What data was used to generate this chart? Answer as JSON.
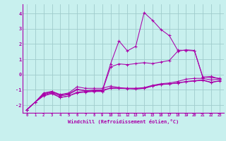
{
  "xlabel": "Windchill (Refroidissement éolien,°C)",
  "ylabel": "",
  "background_color": "#c8f0ee",
  "grid_color": "#a0cccc",
  "line_color": "#aa00aa",
  "xlim": [
    -0.5,
    23.5
  ],
  "ylim": [
    -2.5,
    4.6
  ],
  "xticks": [
    0,
    1,
    2,
    3,
    4,
    5,
    6,
    7,
    8,
    9,
    10,
    11,
    12,
    13,
    14,
    15,
    16,
    17,
    18,
    19,
    20,
    21,
    22,
    23
  ],
  "yticks": [
    -2,
    -1,
    0,
    1,
    2,
    3,
    4
  ],
  "series": [
    [
      0,
      1,
      2,
      3,
      4,
      5,
      6,
      7,
      8,
      9,
      10,
      11,
      12,
      13,
      14,
      15,
      16,
      17,
      18,
      19,
      20,
      21,
      22,
      23
    ],
    [
      -2.3,
      -1.8,
      -1.2,
      -1.1,
      -1.3,
      -1.2,
      -0.8,
      -0.9,
      -0.9,
      -0.9,
      -0.75,
      -0.85,
      -0.9,
      -0.9,
      -0.85,
      -0.7,
      -0.6,
      -0.55,
      -0.45,
      -0.3,
      -0.25,
      -0.25,
      -0.35,
      -0.3
    ],
    [
      -2.3,
      -1.8,
      -1.25,
      -1.1,
      -1.35,
      -1.25,
      -0.95,
      -1.05,
      -1.1,
      -1.1,
      -0.85,
      -0.9,
      -0.9,
      -0.9,
      -0.9,
      -0.75,
      -0.65,
      -0.6,
      -0.55,
      -0.45,
      -0.4,
      -0.35,
      -0.5,
      -0.4
    ],
    [
      -2.3,
      -1.8,
      -1.3,
      -1.15,
      -1.4,
      -1.3,
      -1.0,
      -1.05,
      -1.0,
      -1.0,
      -0.9,
      -0.9,
      -0.92,
      -0.95,
      -0.9,
      -0.75,
      -0.65,
      -0.62,
      -0.55,
      -0.48,
      -0.42,
      -0.38,
      -0.52,
      -0.42
    ],
    [
      -2.3,
      -1.8,
      -1.35,
      -1.2,
      -1.5,
      -1.4,
      -1.15,
      -1.1,
      -1.05,
      -1.05,
      0.7,
      2.2,
      1.55,
      1.85,
      4.05,
      3.55,
      2.95,
      2.55,
      1.6,
      1.58,
      1.55,
      -0.18,
      -0.12,
      -0.28
    ],
    [
      -2.3,
      -1.8,
      -1.4,
      -1.25,
      -1.5,
      -1.4,
      -1.2,
      -1.15,
      -1.1,
      -1.1,
      0.5,
      0.7,
      0.65,
      0.72,
      0.78,
      0.72,
      0.82,
      0.92,
      1.52,
      1.62,
      1.58,
      -0.15,
      -0.2,
      -0.25
    ]
  ]
}
